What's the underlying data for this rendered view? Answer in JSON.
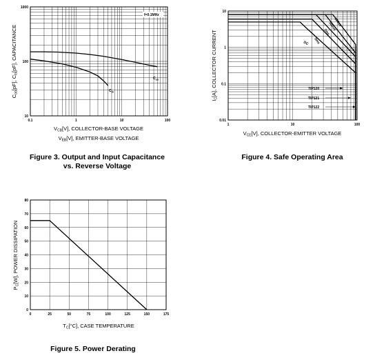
{
  "chart_data": [
    {
      "type": "line",
      "title": "Figure 3. Output and Input Capacitance",
      "subtitle": "vs. Reverse Voltage",
      "xlabel": "VCB[V], COLLECTOR-BASE VOLTAGE",
      "xlabel2": "VEB[V], EMITTER-BASE VOLTAGE",
      "ylabel": "Cob[pF], Cib[pF], CAPACITANCE",
      "xscale": "log",
      "yscale": "log",
      "xlim": [
        0.1,
        100
      ],
      "ylim": [
        10,
        1000
      ],
      "x_ticks": [
        "0.1",
        "1",
        "10",
        "100"
      ],
      "y_ticks": [
        "10",
        "100",
        "1000"
      ],
      "annotation": "f=0.1MHz",
      "series": [
        {
          "name": "Cob",
          "x": [
            0.1,
            0.2,
            0.4,
            1,
            2,
            4,
            10,
            20,
            40,
            60
          ],
          "y": [
            150,
            150,
            148,
            142,
            134,
            124,
            108,
            96,
            85,
            80
          ]
        },
        {
          "name": "Cib",
          "x": [
            0.1,
            0.2,
            0.5,
            1,
            2,
            3,
            4,
            5
          ],
          "y": [
            110,
            102,
            90,
            78,
            64,
            54,
            44,
            36
          ]
        }
      ],
      "grid": true
    },
    {
      "type": "line",
      "title": "Figure 4. Safe Operating Area",
      "xlabel": "VCE[V], COLLECTOR-EMITTER VOLTAGE",
      "ylabel": "IC[A], COLLECTOR CURRENT",
      "xscale": "log",
      "yscale": "log",
      "xlim": [
        1,
        100
      ],
      "ylim": [
        0.01,
        10
      ],
      "x_ticks": [
        "1",
        "10",
        "100"
      ],
      "y_ticks": [
        "0.01",
        "0.1",
        "1",
        "10"
      ],
      "series": [
        {
          "name": "100us",
          "x": [
            1,
            42,
            95,
            95
          ],
          "y": [
            8,
            8,
            1.2,
            0.01
          ]
        },
        {
          "name": "500us",
          "x": [
            1,
            32,
            95,
            95
          ],
          "y": [
            8,
            8,
            0.7,
            0.01
          ]
        },
        {
          "name": "1ms",
          "x": [
            1,
            23,
            95,
            95
          ],
          "y": [
            8,
            8,
            0.55,
            0.01
          ]
        },
        {
          "name": "5ms",
          "x": [
            1,
            20,
            95,
            95
          ],
          "y": [
            6,
            6,
            0.35,
            0.01
          ]
        },
        {
          "name": "DC",
          "x": [
            1,
            13,
            17,
            95,
            95
          ],
          "y": [
            5,
            5,
            3.2,
            0.2,
            0.01
          ]
        }
      ],
      "device_limits": [
        {
          "name": "TIP120",
          "x": 60
        },
        {
          "name": "TIP121",
          "x": 80
        },
        {
          "name": "TIP122",
          "x": 100
        }
      ],
      "grid": true
    },
    {
      "type": "line",
      "title": "Figure 5. Power Derating",
      "xlabel": "TC[°C], CASE TEMPERATURE",
      "ylabel": "PC[W], POWER DISSIPATION",
      "xlim": [
        0,
        175
      ],
      "ylim": [
        0,
        80
      ],
      "x_ticks": [
        "0",
        "25",
        "50",
        "75",
        "100",
        "125",
        "150",
        "175"
      ],
      "y_ticks": [
        "0",
        "10",
        "20",
        "30",
        "40",
        "50",
        "60",
        "70",
        "80"
      ],
      "series": [
        {
          "name": "",
          "x": [
            0,
            25,
            150
          ],
          "y": [
            65,
            65,
            0
          ]
        }
      ],
      "grid": true
    }
  ]
}
